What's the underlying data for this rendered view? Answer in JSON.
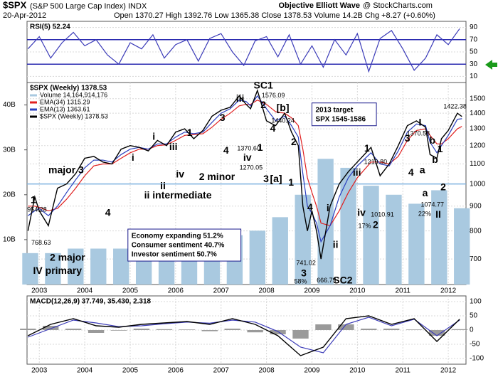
{
  "header": {
    "symbol": "$SPX",
    "name": "(S&P 500 Large Cap Index) INDX",
    "source": "Objective Elliott Wave",
    "credit": "@ StockCharts.com",
    "date": "20-Apr-2012",
    "quote": "Open 1370.27 High 1392.76 Low 1365.38 Close 1378.53 Volume 14.2B Chg +8.27 (+0.60%)"
  },
  "chart_data": [
    {
      "type": "line",
      "title": "RSI(5) 52.24",
      "xlim": [
        2002.73,
        2012.39
      ],
      "ylim": [
        0,
        100
      ],
      "yticks": [
        10,
        30,
        50,
        70,
        90
      ],
      "grid": true,
      "hlines": [
        70,
        30
      ],
      "hline_color": "#2a2ab0",
      "x": [
        2002.75,
        2003,
        2003.25,
        2003.5,
        2003.75,
        2004,
        2004.25,
        2004.5,
        2004.75,
        2005,
        2005.25,
        2005.5,
        2005.75,
        2006,
        2006.25,
        2006.5,
        2006.75,
        2007,
        2007.25,
        2007.5,
        2007.75,
        2008,
        2008.25,
        2008.5,
        2008.75,
        2009,
        2009.25,
        2009.5,
        2009.75,
        2010,
        2010.25,
        2010.5,
        2010.75,
        2011,
        2011.25,
        2011.5,
        2011.75,
        2012,
        2012.25
      ],
      "series": [
        {
          "color": "#3b3bb8",
          "values": [
            55,
            75,
            40,
            65,
            82,
            60,
            70,
            45,
            30,
            65,
            55,
            78,
            40,
            62,
            70,
            35,
            72,
            80,
            50,
            28,
            68,
            75,
            42,
            78,
            30,
            60,
            25,
            70,
            45,
            80,
            18,
            72,
            85,
            55,
            20,
            40,
            78,
            62,
            88
          ]
        }
      ]
    },
    {
      "type": "line",
      "title": "$SPX (Weekly) 1378.53",
      "log": true,
      "xlim": [
        2002.73,
        2012.39
      ],
      "ylim": [
        620,
        1620
      ],
      "yticks": [
        700,
        800,
        900,
        1000,
        1100,
        1200,
        1300,
        1400,
        1500
      ],
      "grid": true,
      "xticks": [
        2003,
        2004,
        2005,
        2006,
        2007,
        2008,
        2009,
        2010,
        2011,
        2012
      ],
      "hlines": [
        1000
      ],
      "hline_color": "#7fb3e0",
      "y2lim": [
        0,
        45
      ],
      "y2ticks": [
        {
          "value": 10,
          "label": "10B"
        },
        {
          "value": 20,
          "label": "20B"
        },
        {
          "value": 30,
          "label": "30B"
        },
        {
          "value": 40,
          "label": "40B"
        }
      ],
      "x": [
        2002.75,
        2002.9,
        2003,
        2003.2,
        2003.4,
        2003.6,
        2003.8,
        2004,
        2004.2,
        2004.4,
        2004.6,
        2004.8,
        2005,
        2005.2,
        2005.4,
        2005.6,
        2005.8,
        2006,
        2006.2,
        2006.4,
        2006.6,
        2006.8,
        2007,
        2007.2,
        2007.4,
        2007.55,
        2007.65,
        2007.8,
        2008,
        2008.2,
        2008.4,
        2008.55,
        2008.7,
        2008.8,
        2008.9,
        2009,
        2009.1,
        2009.2,
        2009.4,
        2009.6,
        2009.8,
        2010,
        2010.3,
        2010.5,
        2010.7,
        2010.9,
        2011.1,
        2011.3,
        2011.5,
        2011.6,
        2011.75,
        2011.85,
        2012,
        2012.2,
        2012.3
      ],
      "series": [
        {
          "name": "Volume 14,164,914,176",
          "type": "bar",
          "axis": "y2",
          "color": "#a9c9e0",
          "x": [
            2002.8,
            2003.3,
            2003.8,
            2004.3,
            2004.8,
            2005.3,
            2005.8,
            2006.3,
            2006.8,
            2007.3,
            2007.8,
            2008.3,
            2008.8,
            2009.3,
            2009.8,
            2010.3,
            2010.8,
            2011.3,
            2011.8,
            2012.3
          ],
          "values": [
            7,
            7,
            8,
            8,
            8,
            8,
            9,
            9,
            10,
            11,
            12,
            15,
            20,
            28,
            26,
            22,
            20,
            18,
            21,
            17
          ]
        },
        {
          "name": "EMA(34) 1315.29",
          "color": "#e02020",
          "values": [
            900,
            900,
            895,
            880,
            890,
            930,
            980,
            1040,
            1090,
            1100,
            1100,
            1130,
            1160,
            1180,
            1180,
            1200,
            1205,
            1230,
            1260,
            1265,
            1270,
            1310,
            1360,
            1400,
            1450,
            1460,
            1460,
            1490,
            1460,
            1410,
            1400,
            1370,
            1320,
            1180,
            1030,
            960,
            900,
            830,
            820,
            880,
            960,
            1030,
            1110,
            1110,
            1100,
            1140,
            1230,
            1290,
            1300,
            1260,
            1210,
            1210,
            1240,
            1300,
            1315
          ]
        },
        {
          "name": "EMA(13) 1363.61",
          "color": "#2a3fbf",
          "values": [
            860,
            880,
            890,
            860,
            900,
            960,
            1020,
            1080,
            1120,
            1120,
            1110,
            1150,
            1180,
            1190,
            1180,
            1210,
            1210,
            1250,
            1280,
            1270,
            1280,
            1340,
            1400,
            1430,
            1490,
            1480,
            1450,
            1520,
            1430,
            1350,
            1380,
            1320,
            1250,
            1050,
            900,
            870,
            830,
            760,
            820,
            940,
            1030,
            1090,
            1160,
            1100,
            1090,
            1170,
            1280,
            1330,
            1320,
            1220,
            1160,
            1200,
            1260,
            1360,
            1364
          ]
        },
        {
          "name": "$SPX (Weekly) 1378.53",
          "color": "#000000",
          "values": [
            800,
            940,
            880,
            820,
            980,
            1000,
            1050,
            1130,
            1140,
            1110,
            1100,
            1180,
            1200,
            1190,
            1170,
            1230,
            1200,
            1280,
            1300,
            1240,
            1290,
            1380,
            1420,
            1440,
            1520,
            1460,
            1430,
            1560,
            1350,
            1320,
            1400,
            1280,
            1200,
            900,
            800,
            880,
            800,
            700,
            900,
            1000,
            1060,
            1110,
            1190,
            1040,
            1100,
            1200,
            1320,
            1350,
            1310,
            1150,
            1130,
            1240,
            1290,
            1400,
            1378
          ]
        }
      ],
      "annotations": [
        {
          "text": "1",
          "x": 2002.87,
          "y": 925,
          "color": "#000000"
        },
        {
          "text": "954.28",
          "x": 2002.95,
          "y": 884,
          "color": "#000000",
          "small": true
        },
        {
          "text": "major 3",
          "x": 2003.59,
          "y": 1065,
          "color": "#000000"
        },
        {
          "text": "4",
          "x": 2004.51,
          "y": 870,
          "color": "#000000"
        },
        {
          "text": "ii intermediate",
          "x": 2006.05,
          "y": 945,
          "color": "#800080"
        },
        {
          "text": "i",
          "x": 2005.06,
          "y": 1131,
          "color": "#800080"
        },
        {
          "text": "i",
          "x": 2005.52,
          "y": 1250,
          "color": "#1a7a1a"
        },
        {
          "text": "ii",
          "x": 2005.72,
          "y": 988,
          "color": "#1a7a1a"
        },
        {
          "text": "iii",
          "x": 2005.95,
          "y": 1190,
          "color": "#1a7a1a"
        },
        {
          "text": "iv",
          "x": 2006.1,
          "y": 1044,
          "color": "#1a7a1a"
        },
        {
          "text": "1",
          "x": 2006.31,
          "y": 1273,
          "color": "#1a1a8c"
        },
        {
          "text": "2 minor",
          "x": 2006.91,
          "y": 1033,
          "color": "#1a1a8c"
        },
        {
          "text": "3",
          "x": 2007.03,
          "y": 1367,
          "color": "#1a1a8c"
        },
        {
          "text": "4",
          "x": 2007.11,
          "y": 1170,
          "color": "#1a1a8c"
        },
        {
          "text": "iii",
          "x": 2007.42,
          "y": 1498,
          "color": "#800080"
        },
        {
          "text": "iv",
          "x": 2007.58,
          "y": 1131,
          "color": "#800080"
        },
        {
          "text": "SC1",
          "x": 2007.93,
          "y": 1595,
          "color": "#30b8c8"
        },
        {
          "text": "2",
          "x": 2007.93,
          "y": 1453,
          "color": "#1a1a8c"
        },
        {
          "text": "1576.09",
          "x": 2008.15,
          "y": 1520,
          "color": "#000000",
          "small": true
        },
        {
          "text": "[b]",
          "x": 2008.36,
          "y": 1434,
          "color": "#6aa0e0"
        },
        {
          "text": "1440.24",
          "x": 2008.36,
          "y": 1349,
          "color": "#000000",
          "small": true
        },
        {
          "text": "1370.60",
          "x": 2007.61,
          "y": 1182,
          "color": "#000000",
          "small": true
        },
        {
          "text": "1",
          "x": 2007.86,
          "y": 1186,
          "color": "#1a1a8c"
        },
        {
          "text": "4",
          "x": 2008.14,
          "y": 1300,
          "color": "#1a1a8c"
        },
        {
          "text": "1270.05",
          "x": 2007.66,
          "y": 1080,
          "color": "#000000",
          "small": true
        },
        {
          "text": "2",
          "x": 2008.6,
          "y": 1218,
          "color": "#1a1a8c"
        },
        {
          "text": "3",
          "x": 2007.99,
          "y": 1022,
          "color": "#1a1a8c"
        },
        {
          "text": "[a]",
          "x": 2008.21,
          "y": 1022,
          "color": "#6aa0e0"
        },
        {
          "text": "1",
          "x": 2008.54,
          "y": 1005,
          "color": "#1a1a8c"
        },
        {
          "text": "4",
          "x": 2008.96,
          "y": 893,
          "color": "#1a1a8c"
        },
        {
          "text": "741.02",
          "x": 2008.87,
          "y": 686,
          "color": "#000000",
          "small": true
        },
        {
          "text": "3",
          "x": 2008.82,
          "y": 653,
          "color": "#1a1a8c"
        },
        {
          "text": "58%",
          "x": 2008.75,
          "y": 628,
          "color": "#e00000",
          "small": true
        },
        {
          "text": "666.79",
          "x": 2009.32,
          "y": 631,
          "color": "#000000",
          "small": true
        },
        {
          "text": "SC2",
          "x": 2009.68,
          "y": 631,
          "color": "#30b8c8"
        },
        {
          "text": "i",
          "x": 2009.35,
          "y": 890,
          "color": "#800080"
        },
        {
          "text": "ii",
          "x": 2009.52,
          "y": 747,
          "color": "#800080"
        },
        {
          "text": "iii",
          "x": 2009.99,
          "y": 1054,
          "color": "#800080"
        },
        {
          "text": "iv",
          "x": 2010.09,
          "y": 870,
          "color": "#800080"
        },
        {
          "text": "1",
          "x": 2010.21,
          "y": 1182,
          "color": "#000000"
        },
        {
          "text": "1219.80",
          "x": 2010.4,
          "y": 1109,
          "color": "#000000",
          "small": true
        },
        {
          "text": "1010.91",
          "x": 2010.55,
          "y": 863,
          "color": "#000000",
          "small": true
        },
        {
          "text": "17%",
          "x": 2010.16,
          "y": 818,
          "color": "#e00000",
          "small": true
        },
        {
          "text": "2",
          "x": 2010.4,
          "y": 821,
          "color": "#000000"
        },
        {
          "text": "I",
          "x": 2011.38,
          "y": 1336,
          "color": "#1e40ff"
        },
        {
          "text": "3",
          "x": 2011.1,
          "y": 1239,
          "color": "#000000"
        },
        {
          "text": "1370.58",
          "x": 2011.34,
          "y": 1269,
          "color": "#000000",
          "small": true
        },
        {
          "text": "b",
          "x": 2011.65,
          "y": 1226,
          "color": "#800080"
        },
        {
          "text": "1",
          "x": 2011.82,
          "y": 1178,
          "color": "#000000"
        },
        {
          "text": "4",
          "x": 2011.18,
          "y": 1054,
          "color": "#000000"
        },
        {
          "text": "a",
          "x": 2011.43,
          "y": 1065,
          "color": "#800080"
        },
        {
          "text": "b",
          "x": 2011.71,
          "y": 1120,
          "color": "#000000"
        },
        {
          "text": "a",
          "x": 2011.49,
          "y": 955,
          "color": "#000000"
        },
        {
          "text": "2",
          "x": 2011.89,
          "y": 982,
          "color": "#000000"
        },
        {
          "text": "1074.77",
          "x": 2011.65,
          "y": 905,
          "color": "#000000",
          "small": true
        },
        {
          "text": "22%",
          "x": 2011.48,
          "y": 866,
          "color": "#e00000",
          "small": true
        },
        {
          "text": "II",
          "x": 2011.78,
          "y": 863,
          "color": "#1e40ff"
        },
        {
          "text": "1422.38",
          "x": 2012.15,
          "y": 1443,
          "color": "#000000",
          "small": true
        },
        {
          "text": "768.63",
          "x": 2003.04,
          "y": 755,
          "color": "#000000",
          "small": true
        },
        {
          "text": "2 major",
          "x": 2003.62,
          "y": 703,
          "color": "#000000"
        },
        {
          "text": "IV primary",
          "x": 2003.4,
          "y": 660,
          "color": "#1e40ff"
        }
      ],
      "notes": [
        {
          "x": 2009.0,
          "y": 1470,
          "lines": [
            "2013 target",
            "SPX 1545-1586"
          ]
        },
        {
          "x": 2004.95,
          "y": 807,
          "lines": [
            "Economy expanding 51.2%",
            "Consumer sentiment 40.7%",
            "Investor sentiment 50.7%"
          ]
        }
      ]
    },
    {
      "type": "line",
      "title": "MACD(12,26,9) 37.749, 35.430, 2.318",
      "xlim": [
        2002.73,
        2012.39
      ],
      "ylim": [
        -120,
        120
      ],
      "yticks": [
        100,
        50,
        0,
        -50,
        -100
      ],
      "grid": true,
      "xticks": [
        2003,
        2004,
        2005,
        2006,
        2007,
        2008,
        2009,
        2010,
        2011,
        2012
      ],
      "x": [
        2002.75,
        2003.25,
        2003.75,
        2004.25,
        2004.75,
        2005.25,
        2005.75,
        2006.25,
        2006.75,
        2007.25,
        2007.75,
        2008.25,
        2008.75,
        2009.25,
        2009.75,
        2010.25,
        2010.75,
        2011.25,
        2011.75,
        2012.25
      ],
      "series": [
        {
          "type": "histogram",
          "color": "#9a9a9a",
          "values": [
            5,
            15,
            5,
            -10,
            -2,
            5,
            3,
            2,
            -4,
            5,
            -8,
            -15,
            -30,
            20,
            20,
            5,
            5,
            2,
            -20,
            3
          ]
        },
        {
          "color": "#3b3bb8",
          "values": [
            -25,
            5,
            35,
            25,
            12,
            15,
            22,
            28,
            24,
            35,
            28,
            -5,
            -60,
            -80,
            20,
            45,
            15,
            38,
            -20,
            35
          ]
        },
        {
          "color": "#000000",
          "values": [
            -20,
            20,
            40,
            15,
            10,
            20,
            25,
            30,
            20,
            40,
            20,
            -20,
            -90,
            -60,
            40,
            50,
            20,
            40,
            -40,
            38
          ]
        }
      ]
    }
  ]
}
